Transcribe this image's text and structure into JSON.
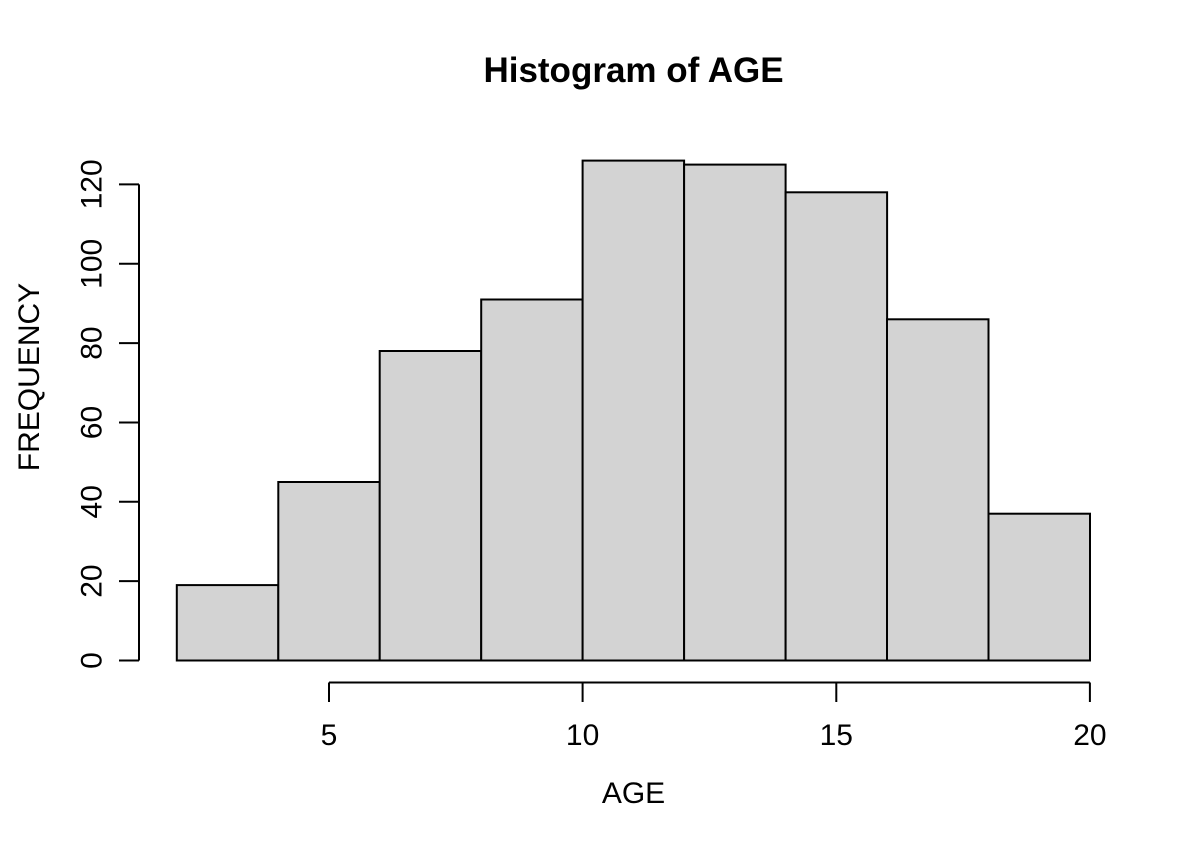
{
  "chart_data": {
    "type": "bar",
    "subtype": "histogram",
    "title": "Histogram of AGE",
    "xlabel": "AGE",
    "ylabel": "FREQUENCY",
    "bin_edges": [
      2,
      4,
      6,
      8,
      10,
      12,
      14,
      16,
      18,
      20
    ],
    "counts": [
      19,
      45,
      78,
      91,
      126,
      125,
      118,
      86,
      37
    ],
    "x_ticks": [
      5,
      10,
      15,
      20
    ],
    "y_ticks": [
      0,
      20,
      40,
      60,
      80,
      100,
      120
    ],
    "xlim": [
      2,
      20
    ],
    "ylim": [
      0,
      126
    ],
    "grid": false,
    "legend": false,
    "colors": {
      "bar_fill": "#d3d3d3",
      "bar_border": "#000000",
      "axis": "#000000",
      "text": "#000000",
      "background": "#ffffff"
    }
  }
}
